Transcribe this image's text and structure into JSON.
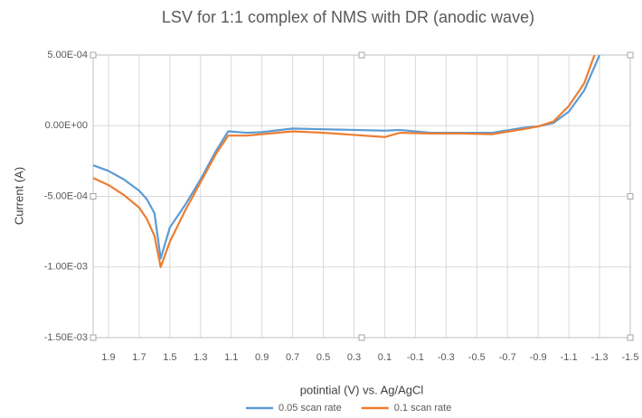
{
  "chart_data": {
    "type": "line",
    "title": "LSV for  1:1 complex of NMS with DR (anodic wave)",
    "x_label": "potintial (V) vs. Ag/AgCl",
    "y_label": "Current (A)",
    "x": [
      2.0,
      1.9,
      1.8,
      1.7,
      1.65,
      1.6,
      1.56,
      1.5,
      1.4,
      1.3,
      1.2,
      1.12,
      1.0,
      0.9,
      0.7,
      0.5,
      0.3,
      0.1,
      0.0,
      -0.2,
      -0.4,
      -0.6,
      -0.8,
      -0.9,
      -1.0,
      -1.1,
      -1.2,
      -1.3
    ],
    "series": [
      {
        "name": "0.05 scan rate",
        "color": "#5b9bd5",
        "values": [
          -0.00028,
          -0.00032,
          -0.00038,
          -0.00046,
          -0.00052,
          -0.00062,
          -0.00094,
          -0.00072,
          -0.00056,
          -0.00038,
          -0.00018,
          -4e-05,
          -5e-05,
          -4.5e-05,
          -2e-05,
          -2.5e-05,
          -3e-05,
          -3.5e-05,
          -3e-05,
          -5e-05,
          -5e-05,
          -5e-05,
          -1.5e-05,
          -5e-06,
          2e-05,
          0.0001,
          0.00025,
          0.0005
        ]
      },
      {
        "name": "0.1 scan rate",
        "color": "#ed7d31",
        "values": [
          -0.00037,
          -0.00042,
          -0.00049,
          -0.00058,
          -0.00066,
          -0.00078,
          -0.001,
          -0.00082,
          -0.0006,
          -0.0004,
          -0.0002,
          -7e-05,
          -7e-05,
          -6e-05,
          -4e-05,
          -5e-05,
          -6.5e-05,
          -8e-05,
          -5e-05,
          -5.5e-05,
          -5.5e-05,
          -6e-05,
          -2.5e-05,
          -5e-06,
          3e-05,
          0.00014,
          0.0003,
          0.0006
        ]
      }
    ],
    "xlim": [
      2.0,
      -1.5
    ],
    "xticks": [
      1.9,
      1.7,
      1.5,
      1.3,
      1.1,
      0.9,
      0.7,
      0.5,
      0.3,
      0.1,
      -0.1,
      -0.3,
      -0.5,
      -0.7,
      -0.9,
      -1.1,
      -1.3,
      -1.5
    ],
    "ylim": [
      -0.0015,
      0.0005
    ],
    "yticks": [
      {
        "value": -0.0015,
        "label": "-1.50E-03"
      },
      {
        "value": -0.001,
        "label": "-1.00E-03"
      },
      {
        "value": -0.0005,
        "label": "-5.00E-04"
      },
      {
        "value": 0,
        "label": "0.00E+00"
      },
      {
        "value": 0.0005,
        "label": "5.00E-04"
      }
    ],
    "grid": true,
    "legend": "bottom"
  }
}
